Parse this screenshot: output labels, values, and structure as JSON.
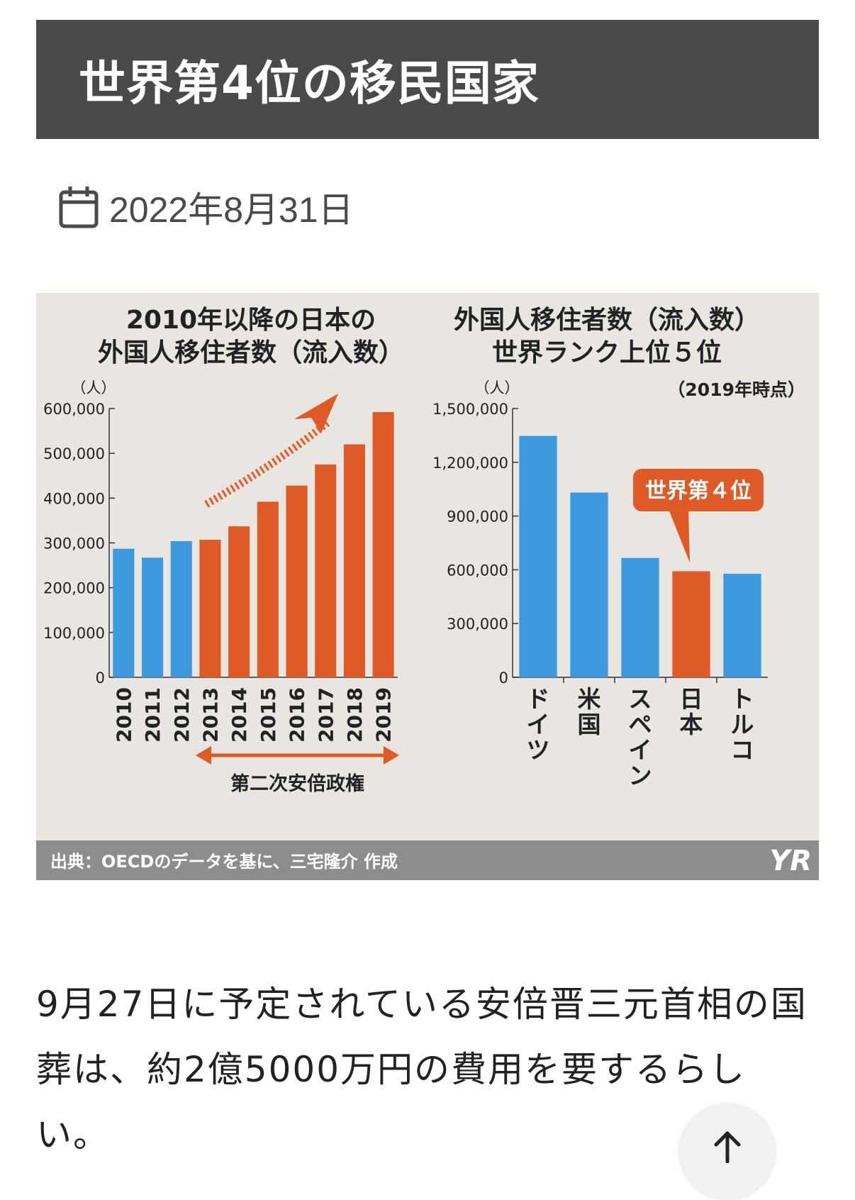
{
  "article": {
    "title": "世界第4位の移民国家",
    "date": "2022年8月31日",
    "body": "9月27日に予定されている安倍晋三元首相の国葬は、約2億5000万円の費用を要するらしい。"
  },
  "figure": {
    "source": "出典：OECDのデータを基に、三宅隆介 作成",
    "logo_text": "YR",
    "chart_data": [
      {
        "type": "bar",
        "title": "2010年以降の日本の\n外国人移住者数（流入数）",
        "unit_label": "（人）",
        "categories": [
          "2010",
          "2011",
          "2012",
          "2013",
          "2014",
          "2015",
          "2016",
          "2017",
          "2018",
          "2019"
        ],
        "values": [
          287000,
          267000,
          304000,
          307000,
          337000,
          392000,
          428000,
          475000,
          520000,
          592000
        ],
        "ylim": [
          0,
          600000
        ],
        "y_ticks": [
          "0",
          "100,000",
          "200,000",
          "300,000",
          "400,000",
          "500,000",
          "600,000"
        ],
        "colors": {
          "before": "#3d98de",
          "after": "#df5a26"
        },
        "highlight_from_index": 3,
        "annotation_label": "第二次安倍政権"
      },
      {
        "type": "bar",
        "title": "外国人移住者数（流入数）\n世界ランク上位５位",
        "subtitle": "（2019年時点）",
        "unit_label": "（人）",
        "categories": [
          "ドイツ",
          "米国",
          "スペイン",
          "日本",
          "トルコ"
        ],
        "values": [
          1347000,
          1031000,
          666000,
          592000,
          578000
        ],
        "ylim": [
          0,
          1500000
        ],
        "y_ticks": [
          "0",
          "300,000",
          "600,000",
          "900,000",
          "1,200,000",
          "1,500,000"
        ],
        "colors": {
          "default": "#3d98de",
          "highlight": "#df5a26"
        },
        "highlight_index": 3,
        "callout_label": "世界第４位"
      }
    ]
  },
  "controls": {
    "scroll_top_icon": "arrow-up-icon"
  }
}
